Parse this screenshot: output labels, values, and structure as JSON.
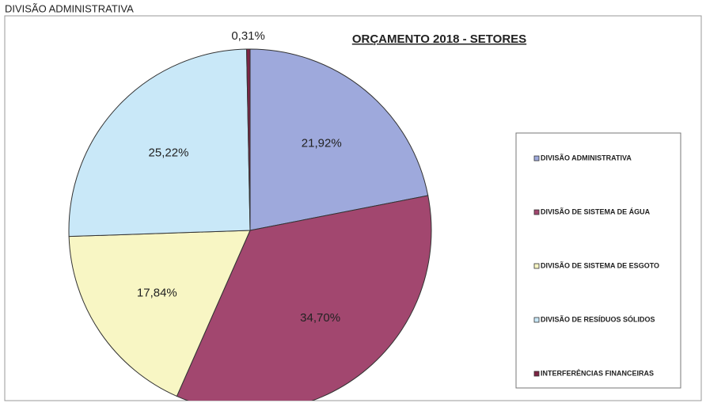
{
  "top_label": "DIVISÃO ADMINISTRATIVA",
  "chart_data": {
    "type": "pie",
    "title": "ORÇAMENTO 2018 - SETORES",
    "categories": [
      "DIVISÃO ADMINISTRATIVA",
      "DIVISÃO DE SISTEMA DE ÁGUA",
      "DIVISÃO DE SISTEMA DE ESGOTO",
      "DIVISÃO DE RESÍDUOS SÓLIDOS",
      "INTERFERÊNCIAS FINANCEIRAS"
    ],
    "values": [
      21.92,
      34.7,
      17.84,
      25.22,
      0.31
    ],
    "value_labels": [
      "21,92%",
      "34,70%",
      "17,84%",
      "25,22%",
      "0,31%"
    ],
    "colors": [
      "#9ea9dc",
      "#a2476f",
      "#f8f6c4",
      "#c9e8f8",
      "#7e2444"
    ],
    "legend": "right"
  }
}
